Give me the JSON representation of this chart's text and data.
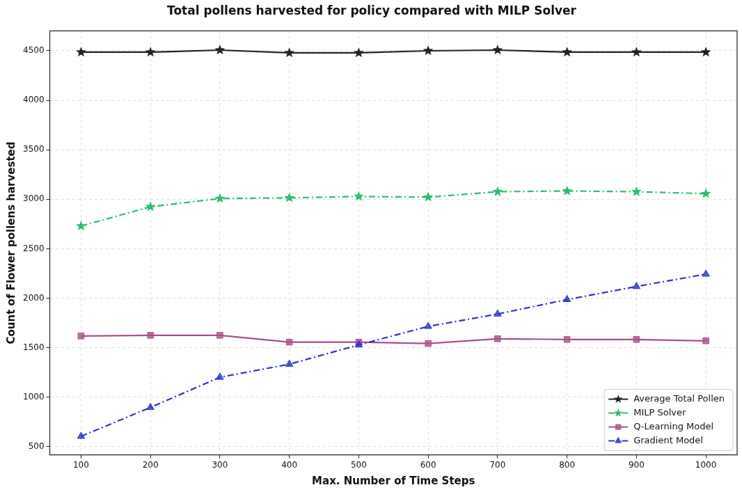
{
  "chart_data": {
    "type": "line",
    "title": "Total pollens harvested for policy compared with MILP Solver",
    "xlabel": "Max. Number of Time Steps",
    "ylabel": "Count of Flower pollens harvested",
    "x": [
      100,
      200,
      300,
      400,
      500,
      600,
      700,
      800,
      900,
      1000
    ],
    "xlim": [
      55,
      1045
    ],
    "xticks": [
      100,
      200,
      300,
      400,
      500,
      600,
      700,
      800,
      900,
      1000
    ],
    "ylim": [
      417,
      4701
    ],
    "yticks": [
      500,
      1000,
      1500,
      2000,
      2500,
      3000,
      3500,
      4000,
      4500
    ],
    "grid": true,
    "legend": "bottom right",
    "series": [
      {
        "name": "Average Total Pollen",
        "color": "#222222",
        "marker": "star",
        "line_style": "solid",
        "values": [
          4486,
          4486,
          4507,
          4479,
          4479,
          4500,
          4507,
          4486,
          4486,
          4486
        ]
      },
      {
        "name": "MILP Solver",
        "color": "#2ebd6e",
        "marker": "star",
        "line_style": "dashdot",
        "values": [
          2729,
          2924,
          3007,
          3014,
          3028,
          3021,
          3076,
          3083,
          3076,
          3056
        ]
      },
      {
        "name": "Q-Learning Model",
        "color": "#a8508a",
        "marker": "square",
        "line_style": "solid",
        "values": [
          1618,
          1625,
          1625,
          1556,
          1556,
          1542,
          1590,
          1583,
          1583,
          1569
        ]
      },
      {
        "name": "Gradient Model",
        "color": "#2c32cc",
        "marker": "triangle",
        "line_style": "dashdot",
        "values": [
          604,
          896,
          1201,
          1333,
          1528,
          1715,
          1840,
          1986,
          2118,
          2243
        ]
      }
    ]
  }
}
